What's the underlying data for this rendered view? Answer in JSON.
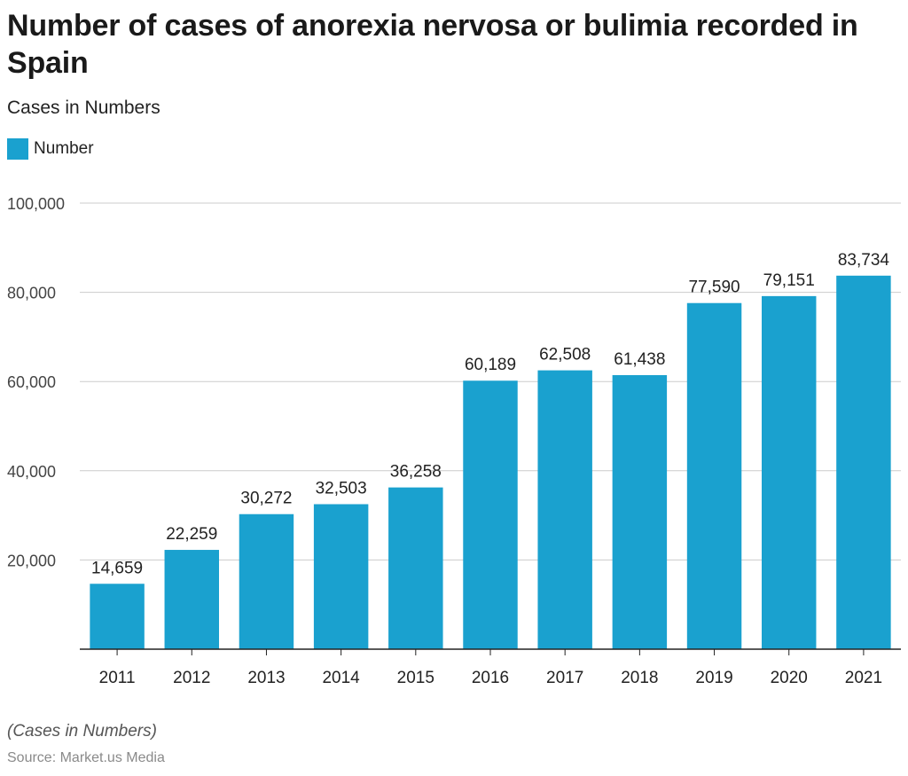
{
  "title": "Number of cases of anorexia nervosa or bulimia recorded in Spain",
  "subtitle": "Cases in Numbers",
  "footnote": "(Cases in Numbers)",
  "source": "Source: Market.us Media",
  "colors": {
    "bar": "#1aa1cf",
    "grid": "#cccccc",
    "axis": "#222222",
    "tick_text": "#444444"
  },
  "chart_data": {
    "type": "bar",
    "categories": [
      "2011",
      "2012",
      "2013",
      "2014",
      "2015",
      "2016",
      "2017",
      "2018",
      "2019",
      "2020",
      "2021"
    ],
    "series": [
      {
        "name": "Number",
        "values": [
          14659,
          22259,
          30272,
          32503,
          36258,
          60189,
          62508,
          61438,
          77590,
          79151,
          83734
        ]
      }
    ],
    "data_labels": [
      "14,659",
      "22,259",
      "30,272",
      "32,503",
      "36,258",
      "60,189",
      "62,508",
      "61,438",
      "77,590",
      "79,151",
      "83,734"
    ],
    "y_ticks": [
      20000,
      40000,
      60000,
      80000,
      100000
    ],
    "y_tick_labels": [
      "20,000",
      "40,000",
      "60,000",
      "80,000",
      "100,000"
    ],
    "ylim": [
      0,
      100000
    ],
    "grid": true,
    "legend_placement": "top-left",
    "xlabel": "",
    "ylabel": ""
  }
}
